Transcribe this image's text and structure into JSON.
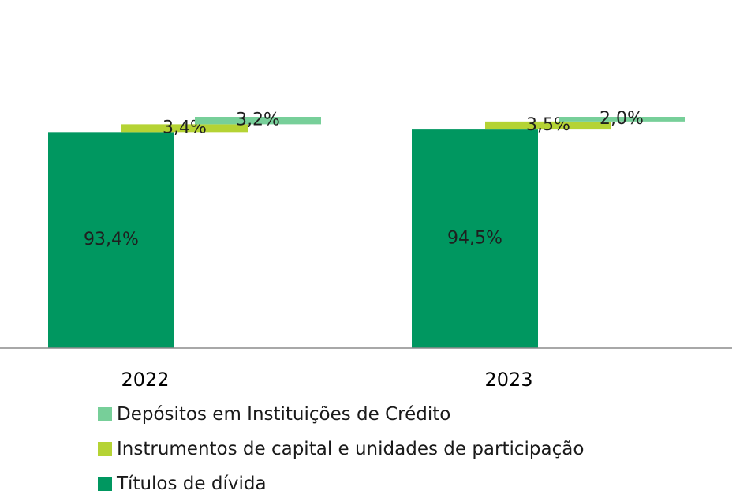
{
  "chart_data": {
    "type": "bar",
    "subtype": "waterfall",
    "categories": [
      "2022",
      "2023"
    ],
    "series": [
      {
        "name": "Títulos de dívida",
        "color": "#009760",
        "values": [
          93.4,
          94.5
        ],
        "labels": [
          "93,4%",
          "94,5%"
        ]
      },
      {
        "name": "Instrumentos de capital e unidades de participação",
        "color": "#b5d334",
        "values": [
          3.4,
          3.5
        ],
        "labels": [
          "3,4%",
          "3,5%"
        ]
      },
      {
        "name": "Depósitos em Instituições de Crédito",
        "color": "#77cf99",
        "values": [
          3.2,
          2.0
        ],
        "labels": [
          "3,2%",
          "2,0%"
        ]
      }
    ],
    "ylim": [
      0,
      100
    ],
    "grid": false,
    "legend": {
      "placement": "bottom",
      "order": [
        "Depósitos em Instituições de Crédito",
        "Instrumentos de capital e unidades de participação",
        "Títulos de dívida"
      ]
    }
  }
}
